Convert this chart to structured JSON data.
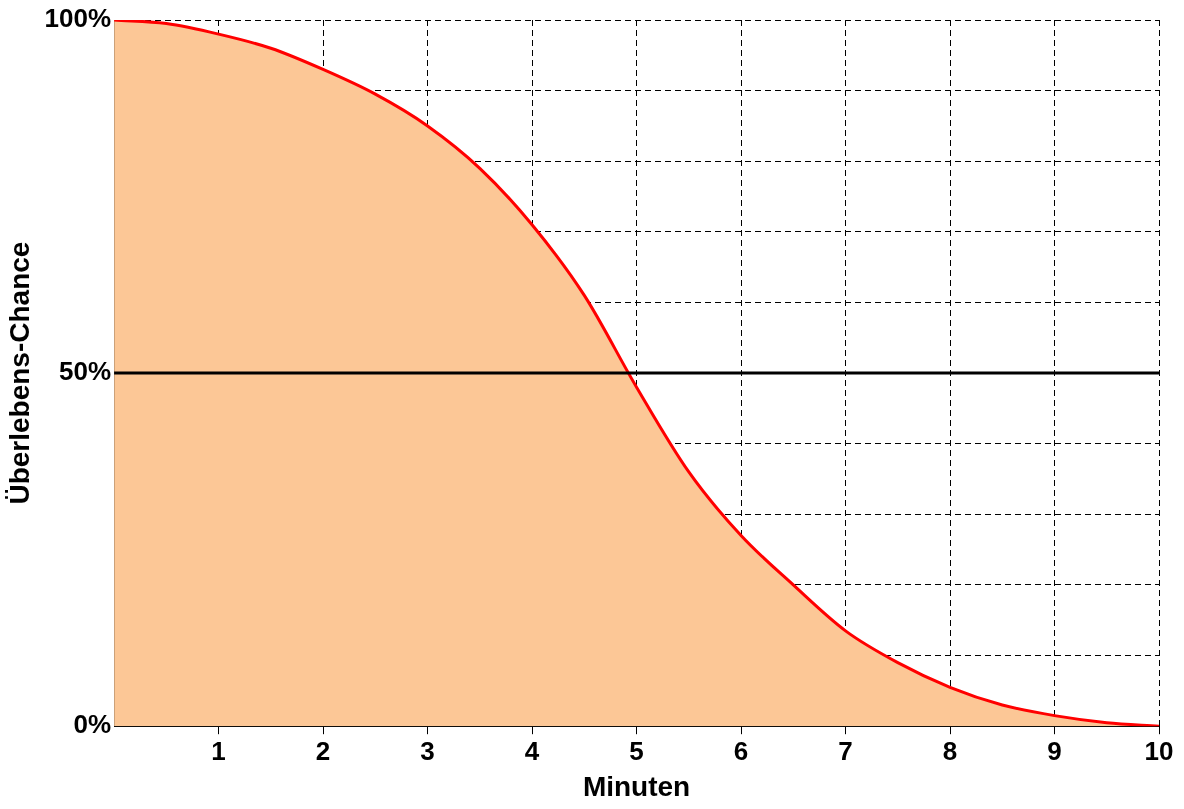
{
  "chart_data": {
    "type": "area",
    "xlabel": "Minuten",
    "ylabel": "Überlebens-Chance",
    "x": [
      0,
      0.5,
      1,
      1.5,
      2,
      2.5,
      3,
      3.5,
      4,
      4.5,
      5,
      5.5,
      6,
      6.5,
      7,
      7.5,
      8,
      8.5,
      9,
      9.5,
      10
    ],
    "series": [
      {
        "color": "#ff0000",
        "values": [
          100,
          99.5,
          98,
          96,
          93,
          89.5,
          85,
          79,
          71,
          61,
          48,
          36,
          27,
          20,
          13.5,
          9,
          5.5,
          3,
          1.5,
          0.5,
          0
        ]
      }
    ],
    "xlim": [
      0,
      10
    ],
    "xticks": [
      1,
      2,
      3,
      4,
      5,
      6,
      7,
      8,
      9,
      10
    ],
    "ylim": [
      0,
      100
    ],
    "yticks": [
      {
        "value": 0,
        "label": "0%"
      },
      {
        "value": 10,
        "label": null
      },
      {
        "value": 20,
        "label": null
      },
      {
        "value": 30,
        "label": null
      },
      {
        "value": 40,
        "label": null
      },
      {
        "value": 50,
        "label": "50%"
      },
      {
        "value": 60,
        "label": null
      },
      {
        "value": 70,
        "label": null
      },
      {
        "value": 80,
        "label": null
      },
      {
        "value": 90,
        "label": null
      },
      {
        "value": 100,
        "label": "100%"
      }
    ],
    "grid": true,
    "line_style": "solid",
    "marker": "none",
    "legend": false,
    "ref_lines": [
      {
        "axis": "y",
        "value": 50,
        "color": "#000000",
        "line_style": "solid"
      }
    ]
  }
}
